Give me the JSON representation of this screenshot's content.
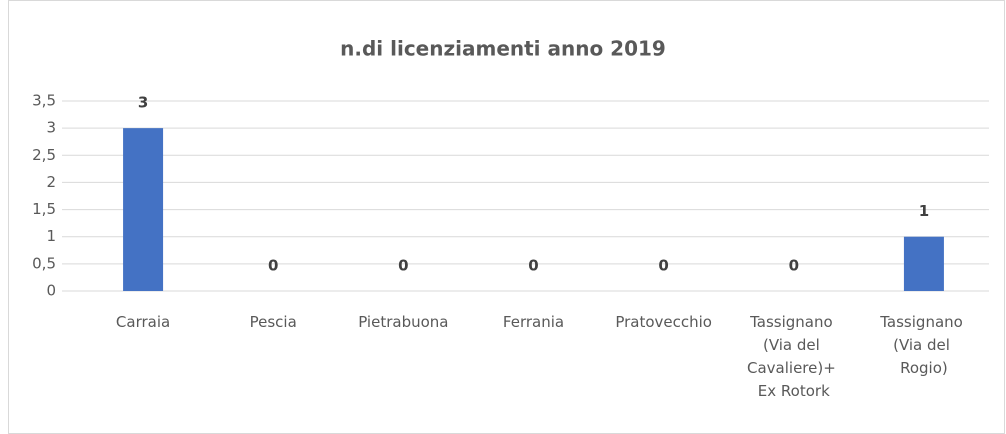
{
  "chart_data": {
    "type": "bar",
    "title": "n.di licenziamenti anno 2019",
    "categories": [
      "Carraia",
      "Pescia",
      "Pietrabuona",
      "Ferrania",
      "Pratovecchio",
      "Tassignano (Via del Cavaliere)+ Ex Rotork",
      "Tassignano (Via del Rogio)"
    ],
    "values": [
      3,
      0,
      0,
      0,
      0,
      0,
      1
    ],
    "color": "#4472c4",
    "ylim": [
      0,
      3.5
    ],
    "yticks": [
      0,
      {
        "value": 0.5,
        "label": "0,5"
      },
      1,
      {
        "value": 1.5,
        "label": "1,5"
      },
      2,
      {
        "value": 2.5,
        "label": "2,5"
      },
      3,
      {
        "value": 3.5,
        "label": "3,5"
      }
    ],
    "grid": true
  }
}
